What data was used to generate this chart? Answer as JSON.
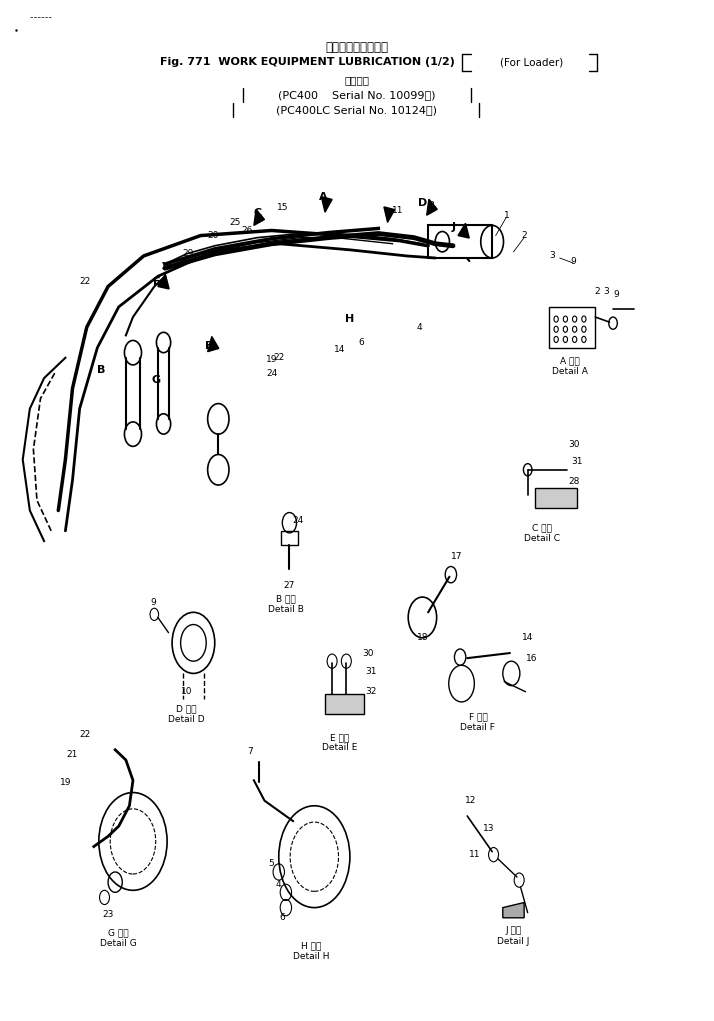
{
  "title_jp": "作　業　機　潤　滑",
  "title_en": "Fig. 771  WORK EQUIPMENT LUBRICATION (1/2)",
  "title_en2": "(For Loader)",
  "subtitle_jp": "適用号機",
  "subtitle1": "(PC400    Serial No. 10099～)",
  "subtitle2": "(PC400LC Serial No. 10124～)",
  "bg_color": "#ffffff",
  "text_color": "#000000",
  "fig_width": 7.14,
  "fig_height": 10.21,
  "dpi": 100
}
